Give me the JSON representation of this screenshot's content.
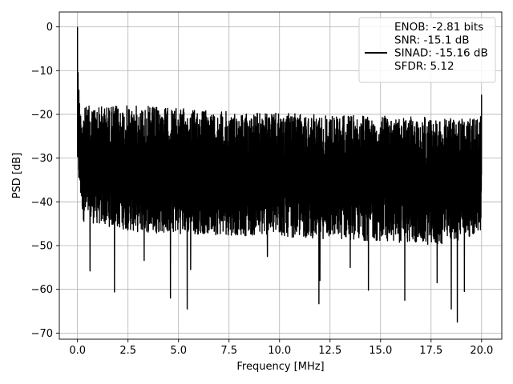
{
  "chart_data": {
    "type": "line",
    "title": "",
    "xlabel": "Frequency [MHz]",
    "ylabel": "PSD [dB]",
    "xlim": [
      -0.9,
      21.0
    ],
    "ylim": [
      -71.4,
      3.4
    ],
    "xticks": [
      0.0,
      2.5,
      5.0,
      7.5,
      10.0,
      12.5,
      15.0,
      17.5,
      20.0
    ],
    "xtick_labels": [
      "0.0",
      "2.5",
      "5.0",
      "7.5",
      "10.0",
      "12.5",
      "15.0",
      "17.5",
      "20.0"
    ],
    "yticks": [
      0,
      -10,
      -20,
      -30,
      -40,
      -50,
      -60,
      -70
    ],
    "ytick_labels": [
      "0",
      "−10",
      "−20",
      "−30",
      "−40",
      "−50",
      "−60",
      "−70"
    ],
    "grid": true,
    "legend_position": "top-right",
    "series": [
      {
        "color": "#000000",
        "legend_lines": [
          "ENOB: -2.81 bits",
          "SNR: -15.1 dB",
          "SINAD: -15.16 dB",
          "SFDR: 5.12"
        ],
        "x_range": [
          0.0,
          20.0
        ],
        "envelope_top": [
          [
            0.0,
            0.0
          ],
          [
            0.05,
            -14
          ],
          [
            0.15,
            -19
          ],
          [
            0.5,
            -18
          ],
          [
            3.0,
            -18
          ],
          [
            8.0,
            -19.5
          ],
          [
            12.0,
            -20
          ],
          [
            16.0,
            -20.5
          ],
          [
            19.8,
            -21
          ],
          [
            19.95,
            -20.5
          ],
          [
            20.0,
            -15.5
          ]
        ],
        "envelope_bottom": [
          [
            0.0,
            -34
          ],
          [
            0.3,
            -44.5
          ],
          [
            3.0,
            -47
          ],
          [
            10.0,
            -48
          ],
          [
            15.0,
            -49
          ],
          [
            18.0,
            -50
          ],
          [
            20.0,
            -47
          ]
        ],
        "peaks": [
          [
            0.0,
            0.0
          ],
          [
            20.0,
            -15.5
          ],
          [
            0.07,
            -14.5
          ]
        ],
        "dips": [
          [
            0.62,
            -55.8
          ],
          [
            1.83,
            -60.6
          ],
          [
            4.6,
            -62
          ],
          [
            5.43,
            -64.5
          ],
          [
            5.6,
            -55.5
          ],
          [
            11.95,
            -63.3
          ],
          [
            12.0,
            -58
          ],
          [
            14.4,
            -60.2
          ],
          [
            16.2,
            -62.5
          ],
          [
            17.8,
            -58.5
          ],
          [
            18.5,
            -64.5
          ],
          [
            18.8,
            -67.5
          ],
          [
            19.15,
            -60.5
          ],
          [
            3.3,
            -53.4
          ],
          [
            9.4,
            -52.5
          ],
          [
            13.5,
            -55
          ]
        ]
      }
    ]
  }
}
